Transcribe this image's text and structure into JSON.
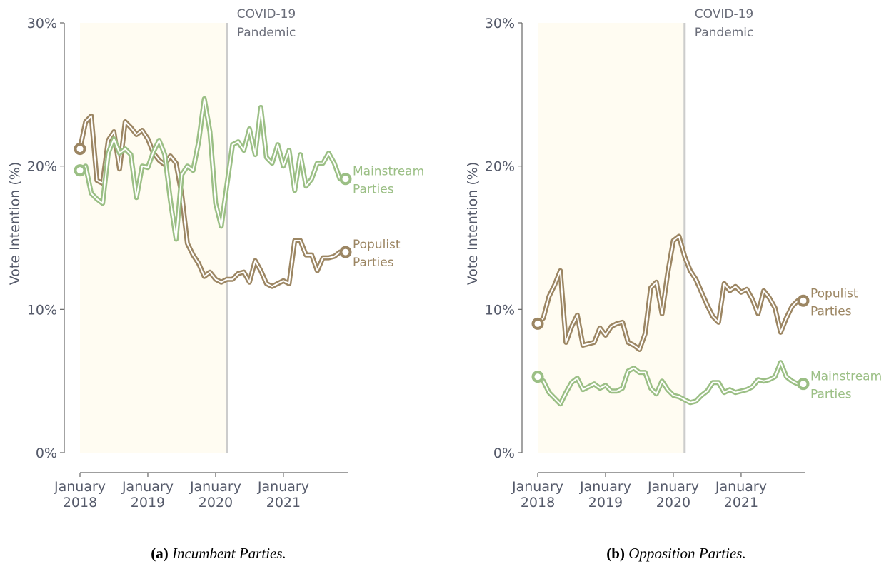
{
  "chart_data": [
    {
      "type": "line",
      "caption_label": "(a)",
      "caption": "Incumbent Parties.",
      "ylabel": "Vote Intention (%)",
      "event": {
        "x": "2020-03",
        "label": "COVID-19 Pandemic"
      },
      "x": [
        "2018-01",
        "2018-02",
        "2018-03",
        "2018-04",
        "2018-05",
        "2018-06",
        "2018-07",
        "2018-08",
        "2018-09",
        "2018-10",
        "2018-11",
        "2018-12",
        "2019-01",
        "2019-02",
        "2019-03",
        "2019-04",
        "2019-05",
        "2019-06",
        "2019-07",
        "2019-08",
        "2019-09",
        "2019-10",
        "2019-11",
        "2019-12",
        "2020-01",
        "2020-02",
        "2020-03",
        "2020-04",
        "2020-05",
        "2020-06",
        "2020-07",
        "2020-08",
        "2020-09",
        "2020-10",
        "2020-11",
        "2020-12",
        "2021-01",
        "2021-02",
        "2021-03",
        "2021-04",
        "2021-05",
        "2021-06",
        "2021-07",
        "2021-08",
        "2021-09",
        "2021-10",
        "2021-11",
        "2021-12"
      ],
      "xlim": [
        "2018-01",
        "2021-12"
      ],
      "xticks": [
        {
          "value": "2018-01",
          "label": "January 2018"
        },
        {
          "value": "2019-01",
          "label": "January 2019"
        },
        {
          "value": "2020-01",
          "label": "January 2020"
        },
        {
          "value": "2021-01",
          "label": "January 2021"
        }
      ],
      "ylim": [
        0,
        30
      ],
      "yticks": [
        {
          "value": 0,
          "label": "0%"
        },
        {
          "value": 10,
          "label": "10%"
        },
        {
          "value": 20,
          "label": "20%"
        },
        {
          "value": 30,
          "label": "30%"
        }
      ],
      "series": [
        {
          "name": "Populist Parties",
          "color": "#9c8663",
          "values": [
            21.2,
            23.1,
            23.5,
            19,
            18.8,
            21.8,
            22.4,
            19.8,
            23.1,
            22.7,
            22.2,
            22.5,
            21.9,
            20.9,
            20.4,
            20.1,
            20.7,
            20.2,
            18,
            14.6,
            13.8,
            13.2,
            12.3,
            12.6,
            12.1,
            11.9,
            12.1,
            12.1,
            12.5,
            12.6,
            11.9,
            13.4,
            12.7,
            11.8,
            11.6,
            11.8,
            12,
            11.8,
            14.8,
            14.8,
            13.8,
            13.8,
            12.7,
            13.6,
            13.6,
            13.7,
            14,
            14
          ]
        },
        {
          "name": "Mainstream Parties",
          "color": "#9bbf85",
          "values": [
            19.7,
            20,
            18.1,
            17.7,
            17.4,
            20.9,
            21.9,
            20.9,
            21.2,
            20.8,
            17.8,
            20,
            19.9,
            21,
            21.8,
            20.8,
            17.6,
            14.9,
            19.4,
            20,
            19.7,
            21.7,
            24.7,
            22.4,
            17.4,
            15.8,
            18.7,
            21.5,
            21.7,
            21.1,
            22.6,
            20.8,
            24.1,
            20.6,
            20.2,
            21.5,
            20,
            21.1,
            18.3,
            20.8,
            18.6,
            19.1,
            20.2,
            20.2,
            20.9,
            20.2,
            19.1,
            19.1
          ]
        }
      ]
    },
    {
      "type": "line",
      "caption_label": "(b)",
      "caption": "Opposition Parties.",
      "ylabel": "Vote Intention (%)",
      "event": {
        "x": "2020-03",
        "label": "COVID-19 Pandemic"
      },
      "x": [
        "2018-01",
        "2018-02",
        "2018-03",
        "2018-04",
        "2018-05",
        "2018-06",
        "2018-07",
        "2018-08",
        "2018-09",
        "2018-10",
        "2018-11",
        "2018-12",
        "2019-01",
        "2019-02",
        "2019-03",
        "2019-04",
        "2019-05",
        "2019-06",
        "2019-07",
        "2019-08",
        "2019-09",
        "2019-10",
        "2019-11",
        "2019-12",
        "2020-01",
        "2020-02",
        "2020-03",
        "2020-04",
        "2020-05",
        "2020-06",
        "2020-07",
        "2020-08",
        "2020-09",
        "2020-10",
        "2020-11",
        "2020-12",
        "2021-01",
        "2021-02",
        "2021-03",
        "2021-04",
        "2021-05",
        "2021-06",
        "2021-07",
        "2021-08",
        "2021-09",
        "2021-10",
        "2021-11",
        "2021-12"
      ],
      "xlim": [
        "2018-01",
        "2021-12"
      ],
      "xticks": [
        {
          "value": "2018-01",
          "label": "January 2018"
        },
        {
          "value": "2019-01",
          "label": "January 2019"
        },
        {
          "value": "2020-01",
          "label": "January 2020"
        },
        {
          "value": "2021-01",
          "label": "January 2021"
        }
      ],
      "ylim": [
        0,
        30
      ],
      "yticks": [
        {
          "value": 0,
          "label": "0%"
        },
        {
          "value": 10,
          "label": "10%"
        },
        {
          "value": 20,
          "label": "20%"
        },
        {
          "value": 30,
          "label": "30%"
        }
      ],
      "series": [
        {
          "name": "Populist Parties",
          "color": "#9c8663",
          "values": [
            9,
            9.4,
            10.9,
            11.7,
            12.7,
            7.7,
            8.8,
            9.6,
            7.5,
            7.6,
            7.7,
            8.7,
            8.2,
            8.8,
            9,
            9.1,
            7.7,
            7.5,
            7.2,
            8.3,
            11.5,
            11.9,
            9.7,
            12.5,
            14.8,
            15.1,
            13.7,
            12.7,
            12.1,
            11.2,
            10.3,
            9.5,
            9.1,
            11.8,
            11.3,
            11.6,
            11.2,
            11.4,
            10.7,
            9.7,
            11.3,
            10.8,
            10.1,
            8.4,
            9.4,
            10.2,
            10.6,
            10.6
          ]
        },
        {
          "name": "Mainstream Parties",
          "color": "#9bbf85",
          "values": [
            5.3,
            5,
            4.2,
            3.8,
            3.4,
            4.2,
            4.9,
            5.2,
            4.4,
            4.6,
            4.8,
            4.5,
            4.7,
            4.3,
            4.3,
            4.5,
            5.7,
            5.9,
            5.6,
            5.6,
            4.5,
            4.1,
            5,
            4.4,
            4,
            3.9,
            3.7,
            3.5,
            3.6,
            4,
            4.3,
            4.9,
            4.9,
            4.2,
            4.4,
            4.2,
            4.3,
            4.4,
            4.6,
            5.1,
            5,
            5.1,
            5.3,
            6.3,
            5.3,
            5,
            4.8,
            4.8
          ]
        }
      ]
    }
  ]
}
